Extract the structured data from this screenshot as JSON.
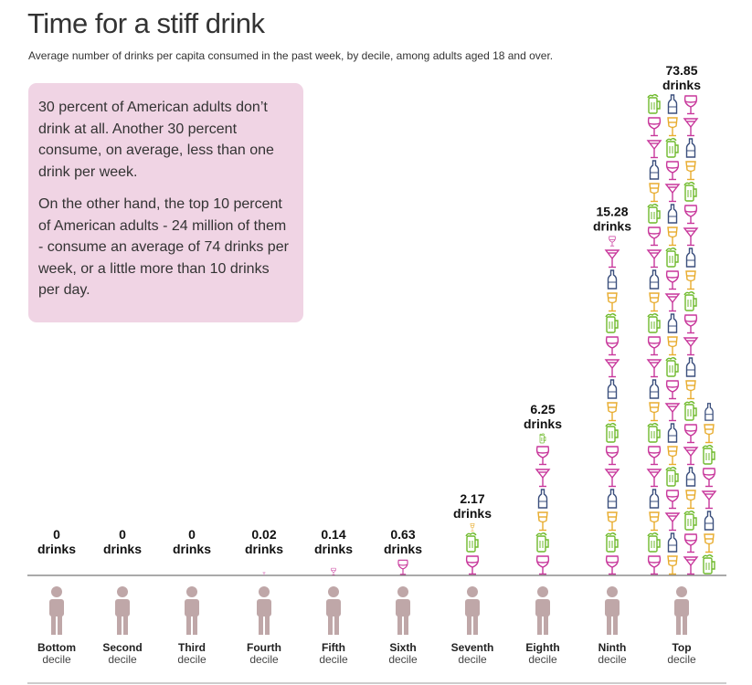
{
  "title": "Time for a stiff drink",
  "subtitle": "Average number of drinks per capita consumed in the past week, by decile, among adults aged 18 and over.",
  "note": {
    "paragraph1": "30 percent of American adults don’t drink at all. Another 30 percent consume, on average, less than one drink per week.",
    "paragraph2": "On the other hand, the top 10 percent of American adults - 24 million of them - consume an average of 74 drinks per week, or a little more than 10 drinks per day."
  },
  "colors": {
    "wine": "#c8379b",
    "beer": "#6fba2c",
    "whiskey": "#e8ac2e",
    "bottle": "#3b4f7d",
    "person": "#bfa7a8",
    "baseline": "#555555",
    "note_bg": "#f0d4e4"
  },
  "chart_data": {
    "type": "bar",
    "unit": "drinks",
    "categories": [
      {
        "name": "Bottom",
        "sub": "decile"
      },
      {
        "name": "Second",
        "sub": "decile"
      },
      {
        "name": "Third",
        "sub": "decile"
      },
      {
        "name": "Fourth",
        "sub": "decile"
      },
      {
        "name": "Fifth",
        "sub": "decile"
      },
      {
        "name": "Sixth",
        "sub": "decile"
      },
      {
        "name": "Seventh",
        "sub": "decile"
      },
      {
        "name": "Eighth",
        "sub": "decile"
      },
      {
        "name": "Ninth",
        "sub": "decile"
      },
      {
        "name": "Top",
        "sub": "decile"
      }
    ],
    "values": [
      0,
      0,
      0,
      0.02,
      0.14,
      0.63,
      2.17,
      6.25,
      15.28,
      73.85
    ],
    "value_labels": [
      "0",
      "0",
      "0",
      "0.02",
      "0.14",
      "0.63",
      "2.17",
      "6.25",
      "15.28",
      "73.85"
    ],
    "icon_types": [
      "wine-glass-icon",
      "beer-mug-icon",
      "whiskey-glass-icon",
      "bottle-icon",
      "martini-glass-icon"
    ]
  }
}
